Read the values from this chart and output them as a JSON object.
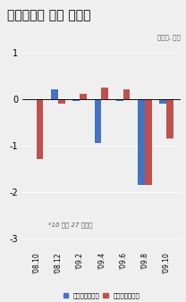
{
  "title": "주식형펀드 자금 유출입",
  "subtitle": "금투협, 조원",
  "note": "*10 월은 27 일까지",
  "categories": [
    "'08.10",
    "'08.12",
    "'09.2",
    "'09.4",
    "'09.6",
    "'09.8",
    "'09.10"
  ],
  "domestic": [
    0.0,
    0.2,
    -0.05,
    -0.95,
    -0.05,
    -1.85,
    -0.1
  ],
  "overseas": [
    -1.3,
    -0.1,
    0.1,
    0.25,
    0.2,
    -1.85,
    -0.85
  ],
  "domestic_color": "#4472C4",
  "overseas_color": "#C0504D",
  "ylim": [
    -3.2,
    1.15
  ],
  "yticks": [
    -3,
    -2,
    -1,
    0,
    1
  ],
  "legend_domestic": "국내주식형펀드",
  "legend_overseas": "해외주식형펀드",
  "bg_color": "#EFEFEF"
}
